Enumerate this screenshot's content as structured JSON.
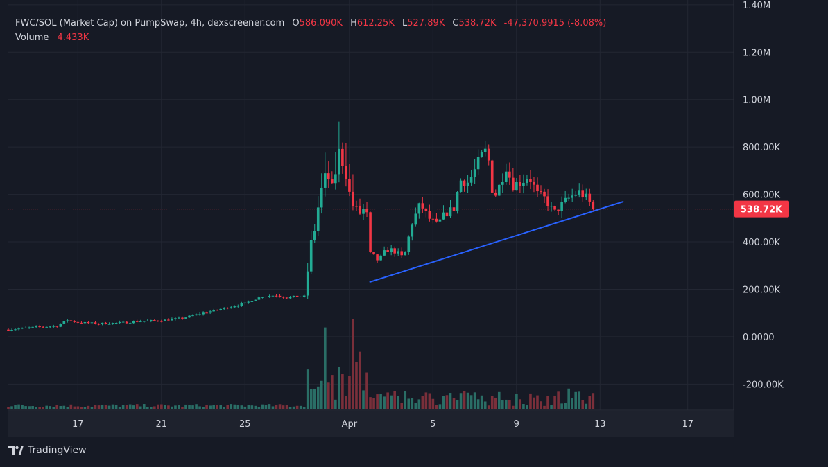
{
  "legend": {
    "symbol": "FWC/SOL (Market Cap) on PumpSwap, 4h, dexscreener.com",
    "open_label": "O",
    "open": "586.090K",
    "high_label": "H",
    "high": "612.25K",
    "low_label": "L",
    "low": "527.89K",
    "close_label": "C",
    "close": "538.72K",
    "change": "-47,370.9915 (-8.08%)",
    "volume_label": "Volume",
    "volume": "4.433K"
  },
  "footer": {
    "brand": "TradingView",
    "logo_icon": "tradingview-logo-icon"
  },
  "colors": {
    "up": "#22ab94",
    "down": "#f23645",
    "vol_up": "#2a6e66",
    "vol_down": "#7a2f3a",
    "trendline": "#2962ff",
    "grid": "#232733",
    "bg": "#161a25"
  },
  "chart_data": {
    "type": "candlestick",
    "interval": "4h",
    "y_axis": {
      "ticks": [
        1400000,
        1200000,
        1000000,
        800000,
        600000,
        400000,
        200000,
        0,
        -200000
      ],
      "tick_labels": [
        "1.40M",
        "1.20M",
        "1.00M",
        "800.00K",
        "600.00K",
        "400.00K",
        "200.00K",
        "0.0000",
        "-200.00K"
      ],
      "range": [
        -310000,
        1420000
      ]
    },
    "x_axis": {
      "ticks": [
        3,
        7,
        11,
        16,
        20,
        24,
        28,
        32.2
      ],
      "tick_labels": [
        "17",
        "21",
        "25",
        "Apr",
        "5",
        "9",
        "13",
        "17"
      ],
      "range": [
        -0.33,
        34.4
      ]
    },
    "current_price": {
      "value": 538720,
      "label": "538.72K"
    },
    "trendline": {
      "x": [
        16.96,
        29.13
      ],
      "y": [
        230000,
        570000
      ]
    },
    "ohlc_keyframes": [
      [
        -0.33,
        30000
      ],
      [
        1,
        40000
      ],
      [
        2,
        45000
      ],
      [
        2.5,
        70000
      ],
      [
        3,
        60000
      ],
      [
        4,
        55000
      ],
      [
        5,
        58000
      ],
      [
        6,
        65000
      ],
      [
        7,
        68000
      ],
      [
        8,
        78000
      ],
      [
        9,
        100000
      ],
      [
        10,
        120000
      ],
      [
        11,
        140000
      ],
      [
        11.8,
        170000
      ],
      [
        12.5,
        175000
      ],
      [
        13,
        165000
      ],
      [
        13.5,
        170000
      ],
      [
        13.95,
        170000
      ],
      [
        14.05,
        370000
      ],
      [
        14.3,
        430000
      ],
      [
        14.6,
        600000
      ],
      [
        14.9,
        690000
      ],
      [
        15.2,
        620000
      ],
      [
        15.5,
        780000
      ],
      [
        15.8,
        700000
      ],
      [
        16.1,
        560000
      ],
      [
        16.5,
        520000
      ],
      [
        16.8,
        550000
      ],
      [
        17,
        350000
      ],
      [
        17.4,
        320000
      ],
      [
        17.8,
        370000
      ],
      [
        18.2,
        360000
      ],
      [
        18.6,
        330000
      ],
      [
        19,
        480000
      ],
      [
        19.4,
        560000
      ],
      [
        19.8,
        500000
      ],
      [
        20.2,
        470000
      ],
      [
        20.6,
        520000
      ],
      [
        21,
        540000
      ],
      [
        21.3,
        660000
      ],
      [
        21.7,
        650000
      ],
      [
        22,
        700000
      ],
      [
        22.3,
        760000
      ],
      [
        22.6,
        790000
      ],
      [
        22.9,
        580000
      ],
      [
        23.2,
        640000
      ],
      [
        23.5,
        720000
      ],
      [
        23.8,
        640000
      ],
      [
        24.2,
        650000
      ],
      [
        24.6,
        680000
      ],
      [
        25,
        600000
      ],
      [
        25.4,
        580000
      ],
      [
        25.8,
        520000
      ],
      [
        26.2,
        560000
      ],
      [
        26.6,
        590000
      ],
      [
        27,
        610000
      ],
      [
        27.4,
        580000
      ],
      [
        27.7,
        538720
      ]
    ],
    "volume_scale": {
      "max_label_value": 0
    }
  }
}
